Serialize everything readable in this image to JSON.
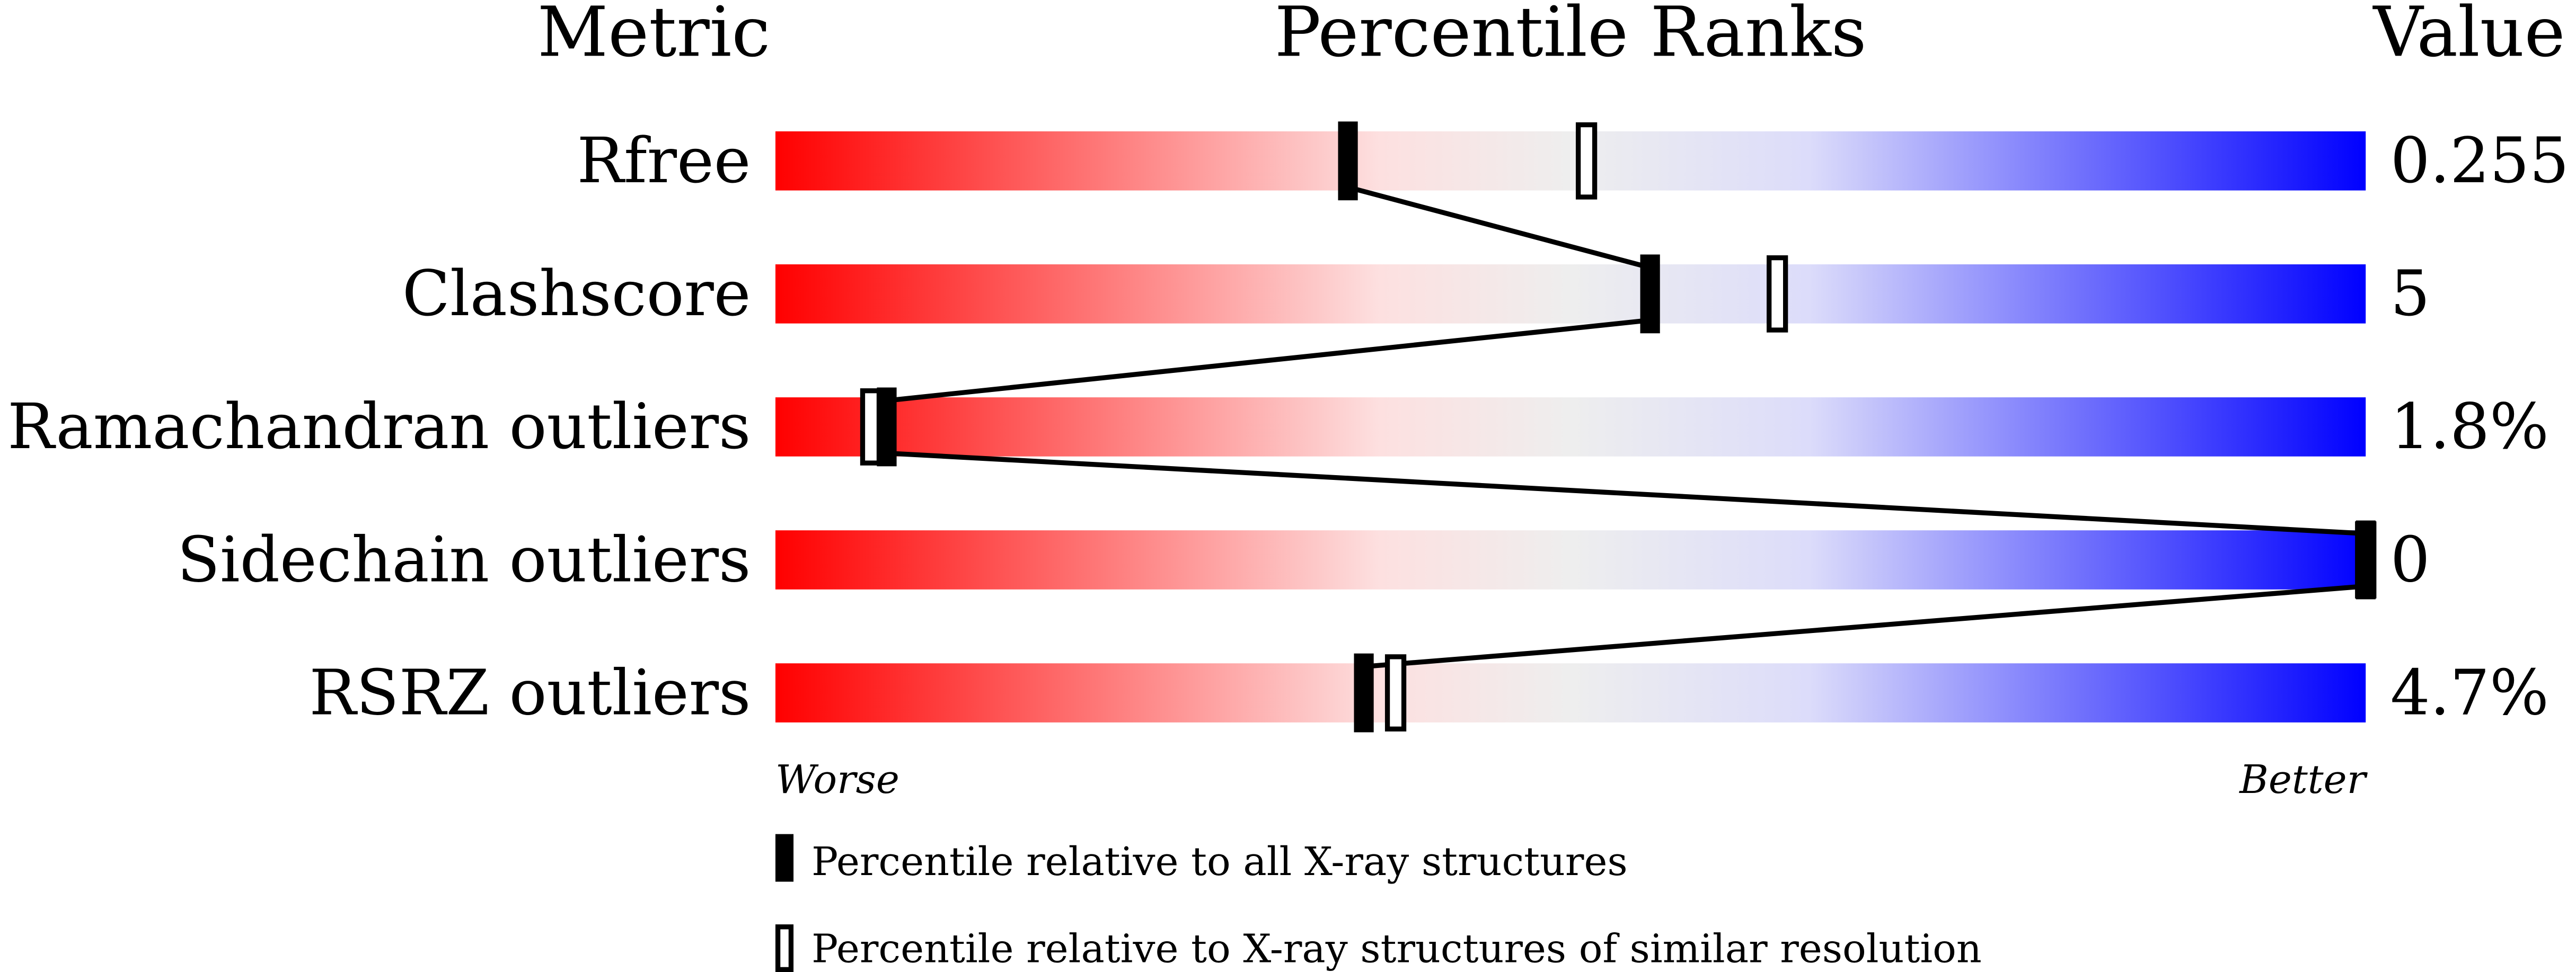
{
  "chart_data": {
    "type": "percentile-slider",
    "headers": {
      "metric": "Metric",
      "ranks": "Percentile Ranks",
      "value": "Value"
    },
    "xlim": [
      0,
      100
    ],
    "scale_low": "Worse",
    "scale_high": "Better",
    "gradient_colors": [
      "#ff0000",
      "#fde0e0",
      "#eeeeee",
      "#dcdcfa",
      "#0000ff"
    ],
    "rows": [
      {
        "metric": "Rfree",
        "value": "0.255",
        "percentile_all": 36,
        "percentile_similar": 51
      },
      {
        "metric": "Clashscore",
        "value": "5",
        "percentile_all": 55,
        "percentile_similar": 63
      },
      {
        "metric": "Ramachandran outliers",
        "value": "1.8%",
        "percentile_all": 7,
        "percentile_similar": 6
      },
      {
        "metric": "Sidechain outliers",
        "value": "0",
        "percentile_all": 100,
        "percentile_similar": 100
      },
      {
        "metric": "RSRZ outliers",
        "value": "4.7%",
        "percentile_all": 37,
        "percentile_similar": 39
      }
    ],
    "legend": [
      {
        "marker": "filled",
        "label": "Percentile relative to all X-ray structures"
      },
      {
        "marker": "open",
        "label": "Percentile relative to X-ray structures of similar resolution"
      }
    ]
  }
}
